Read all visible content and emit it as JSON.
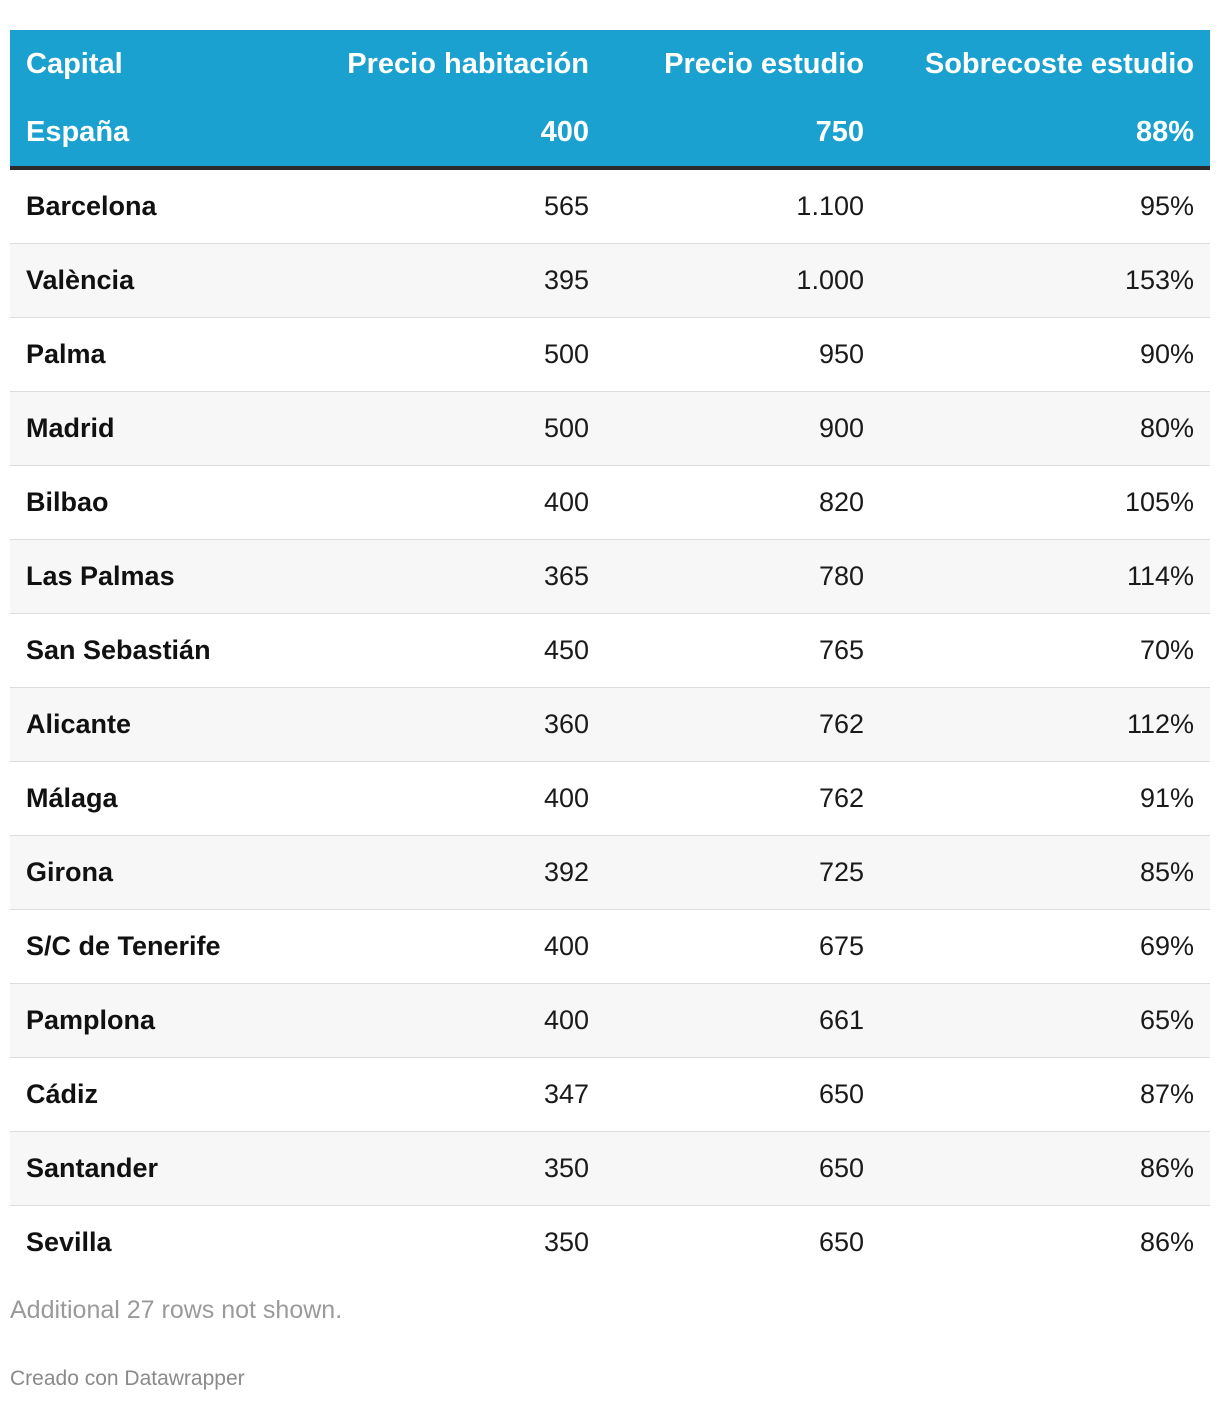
{
  "chart_data": {
    "type": "table",
    "columns": [
      "Capital",
      "Precio habitación",
      "Precio estudio",
      "Sobrecoste estudio"
    ],
    "summary": {
      "capital": "España",
      "precio_habitacion": "400",
      "precio_estudio": "750",
      "sobrecoste": "88%"
    },
    "rows": [
      {
        "capital": "Barcelona",
        "precio_habitacion": "565",
        "precio_estudio": "1.100",
        "sobrecoste": "95%"
      },
      {
        "capital": "València",
        "precio_habitacion": "395",
        "precio_estudio": "1.000",
        "sobrecoste": "153%"
      },
      {
        "capital": "Palma",
        "precio_habitacion": "500",
        "precio_estudio": "950",
        "sobrecoste": "90%"
      },
      {
        "capital": "Madrid",
        "precio_habitacion": "500",
        "precio_estudio": "900",
        "sobrecoste": "80%"
      },
      {
        "capital": "Bilbao",
        "precio_habitacion": "400",
        "precio_estudio": "820",
        "sobrecoste": "105%"
      },
      {
        "capital": "Las Palmas",
        "precio_habitacion": "365",
        "precio_estudio": "780",
        "sobrecoste": "114%"
      },
      {
        "capital": "San Sebastián",
        "precio_habitacion": "450",
        "precio_estudio": "765",
        "sobrecoste": "70%"
      },
      {
        "capital": "Alicante",
        "precio_habitacion": "360",
        "precio_estudio": "762",
        "sobrecoste": "112%"
      },
      {
        "capital": "Málaga",
        "precio_habitacion": "400",
        "precio_estudio": "762",
        "sobrecoste": "91%"
      },
      {
        "capital": "Girona",
        "precio_habitacion": "392",
        "precio_estudio": "725",
        "sobrecoste": "85%"
      },
      {
        "capital": "S/C de Tenerife",
        "precio_habitacion": "400",
        "precio_estudio": "675",
        "sobrecoste": "69%"
      },
      {
        "capital": "Pamplona",
        "precio_habitacion": "400",
        "precio_estudio": "661",
        "sobrecoste": "65%"
      },
      {
        "capital": "Cádiz",
        "precio_habitacion": "347",
        "precio_estudio": "650",
        "sobrecoste": "87%"
      },
      {
        "capital": "Santander",
        "precio_habitacion": "350",
        "precio_estudio": "650",
        "sobrecoste": "86%"
      },
      {
        "capital": "Sevilla",
        "precio_habitacion": "350",
        "precio_estudio": "650",
        "sobrecoste": "86%"
      }
    ],
    "notes": "Additional 27 rows not shown."
  },
  "footer": {
    "credit": "Creado con Datawrapper"
  },
  "colors": {
    "header_bg": "#1aa1cf",
    "header_text": "#ffffff",
    "stripe": "#f7f7f7"
  }
}
